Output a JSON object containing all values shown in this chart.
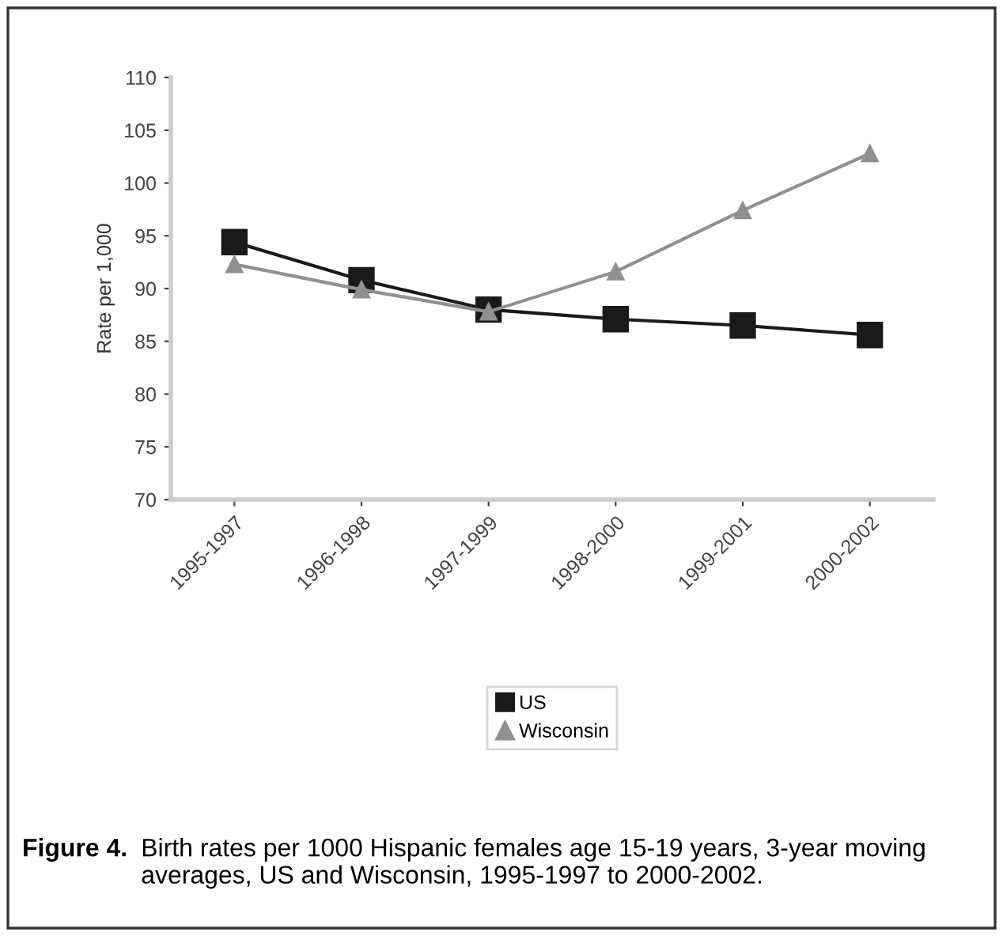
{
  "chart_data": {
    "type": "line",
    "ylabel": "Rate per 1,000",
    "categories": [
      "1995-1997",
      "1996-1998",
      "1997-1999",
      "1998-2000",
      "1999-2001",
      "2000-2002"
    ],
    "series": [
      {
        "name": "US",
        "color": "#1a1a1a",
        "marker": "square",
        "values": [
          94.4,
          90.8,
          88.0,
          87.1,
          86.5,
          85.6
        ]
      },
      {
        "name": "Wisconsin",
        "color": "#909090",
        "marker": "triangle",
        "values": [
          92.3,
          89.9,
          87.8,
          91.6,
          97.4,
          102.8
        ]
      }
    ],
    "ylim": [
      70,
      110
    ],
    "yticks": [
      70,
      75,
      80,
      85,
      90,
      95,
      100,
      105,
      110
    ],
    "grid": false,
    "legend": "bottom",
    "annotations": [
      "Figure 4.",
      "Birth rates per 1000 Hispanic females age 15-19 years, 3-year moving averages, US and Wisconsin, 1995-1997 to 2000-2002."
    ]
  }
}
